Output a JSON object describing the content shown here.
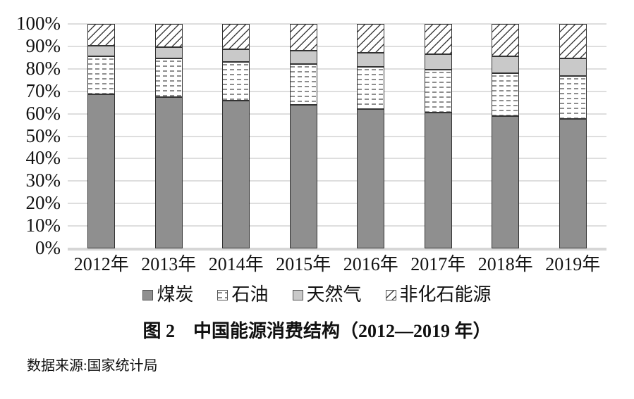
{
  "chart_data": {
    "type": "bar",
    "variant": "stacked-100-percent",
    "title": "图 2　中国能源消费结构（2012—2019 年）",
    "source_note": "数据来源:国家统计局",
    "categories": [
      "2012年",
      "2013年",
      "2014年",
      "2015年",
      "2016年",
      "2017年",
      "2018年",
      "2019年"
    ],
    "series": [
      {
        "key": "coal",
        "name": "煤炭",
        "pattern": "solid-dark-gray",
        "values": [
          68.5,
          67.4,
          65.8,
          63.8,
          62.2,
          60.6,
          59.0,
          57.7
        ]
      },
      {
        "key": "oil",
        "name": "石油",
        "pattern": "white-dashes",
        "values": [
          17.0,
          17.1,
          17.3,
          18.4,
          18.7,
          18.9,
          18.9,
          19.0
        ]
      },
      {
        "key": "gas",
        "name": "天然气",
        "pattern": "solid-light-gray",
        "values": [
          4.8,
          5.3,
          5.6,
          5.8,
          6.1,
          6.9,
          7.6,
          8.0
        ]
      },
      {
        "key": "nonfossil",
        "name": "非化石能源",
        "pattern": "diagonal-hatch",
        "values": [
          9.7,
          10.2,
          11.3,
          12.0,
          13.0,
          13.6,
          14.5,
          15.3
        ]
      }
    ],
    "y_ticks": [
      "100%",
      "90%",
      "80%",
      "70%",
      "60%",
      "50%",
      "40%",
      "30%",
      "20%",
      "10%",
      "0%"
    ],
    "ylim": [
      0,
      100
    ],
    "unit": "%",
    "xlabel": "",
    "ylabel": "",
    "grid": true,
    "legend_position": "bottom"
  },
  "colors": {
    "coal_fill": "#8f8f8f",
    "gas_fill": "#c9c9c9",
    "oil_dash_ink": "#8e8e8e",
    "hatch_ink": "#3f3f3f",
    "segment_border": "#333333",
    "gridline": "#dedede",
    "baseline": "#d6d6d6",
    "text": "#111111",
    "background": "#ffffff"
  }
}
